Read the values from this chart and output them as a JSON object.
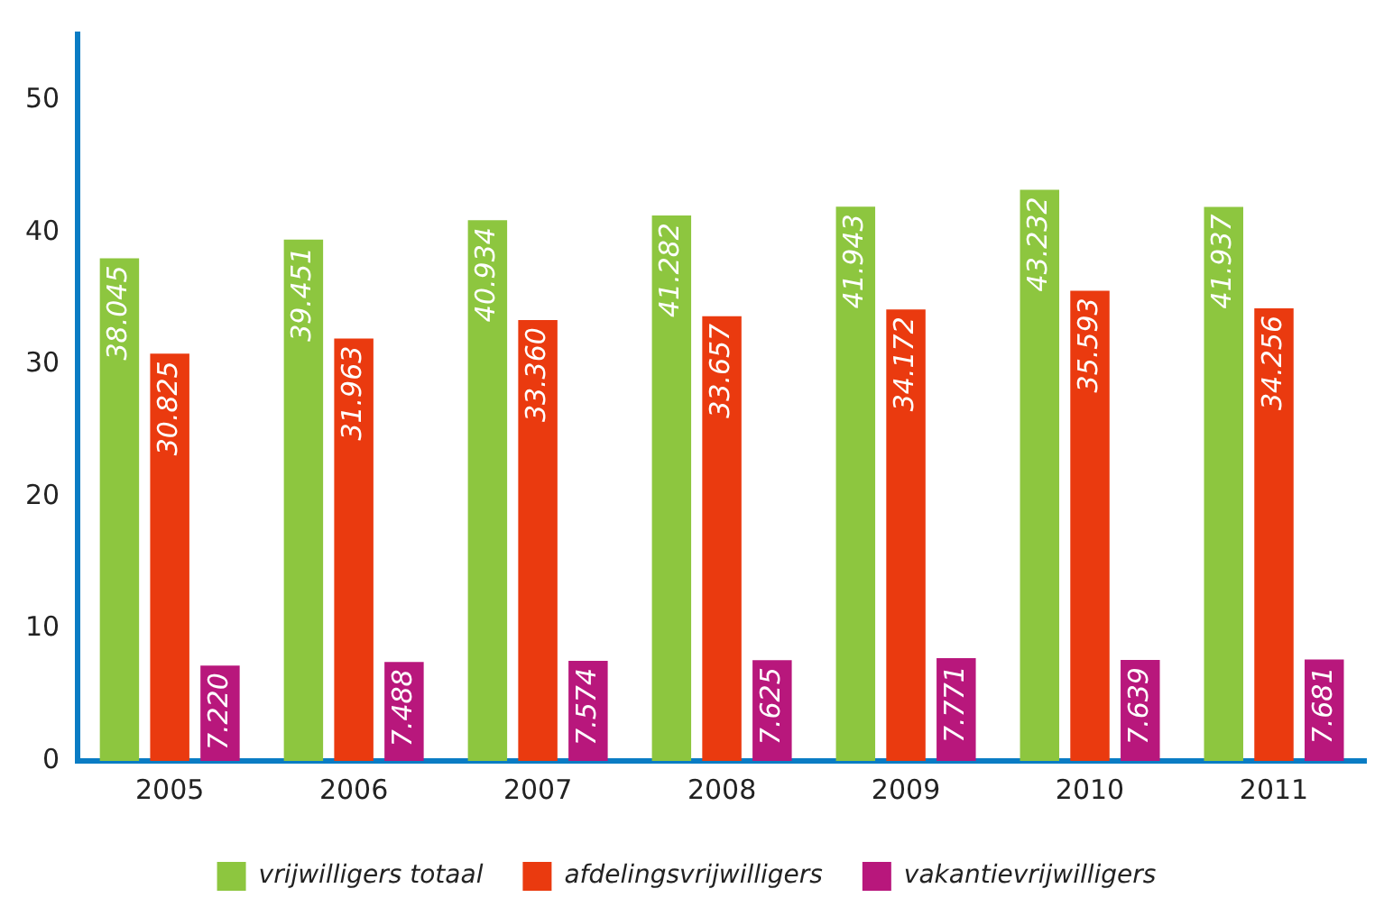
{
  "chart_data": {
    "type": "bar",
    "categories": [
      "2005",
      "2006",
      "2007",
      "2008",
      "2009",
      "2010",
      "2011"
    ],
    "series": [
      {
        "name": "vrijwilligers totaal",
        "color": "#8dc63f",
        "values": [
          38.045,
          39.451,
          40.934,
          41.282,
          41.943,
          43.232,
          41.937
        ],
        "value_labels": [
          "38.045",
          "39.451",
          "40.934",
          "41.282",
          "41.943",
          "43.232",
          "41.937"
        ]
      },
      {
        "name": "afdelingsvrijwilligers",
        "color": "#ea3a0f",
        "values": [
          30.825,
          31.963,
          33.36,
          33.657,
          34.172,
          35.593,
          34.256
        ],
        "value_labels": [
          "30.825",
          "31.963",
          "33.360",
          "33.657",
          "34.172",
          "35.593",
          "34.256"
        ]
      },
      {
        "name": "vakantievrijwilligers",
        "color": "#b8177c",
        "values": [
          7.22,
          7.488,
          7.574,
          7.625,
          7.771,
          7.639,
          7.681
        ],
        "value_labels": [
          "7.220",
          "7.488",
          "7.574",
          "7.625",
          "7.771",
          "7.639",
          "7.681"
        ]
      }
    ],
    "ylim": [
      0,
      55
    ],
    "yticks": [
      0,
      10,
      20,
      30,
      40,
      50
    ],
    "grid": false,
    "legend": "bottom"
  }
}
